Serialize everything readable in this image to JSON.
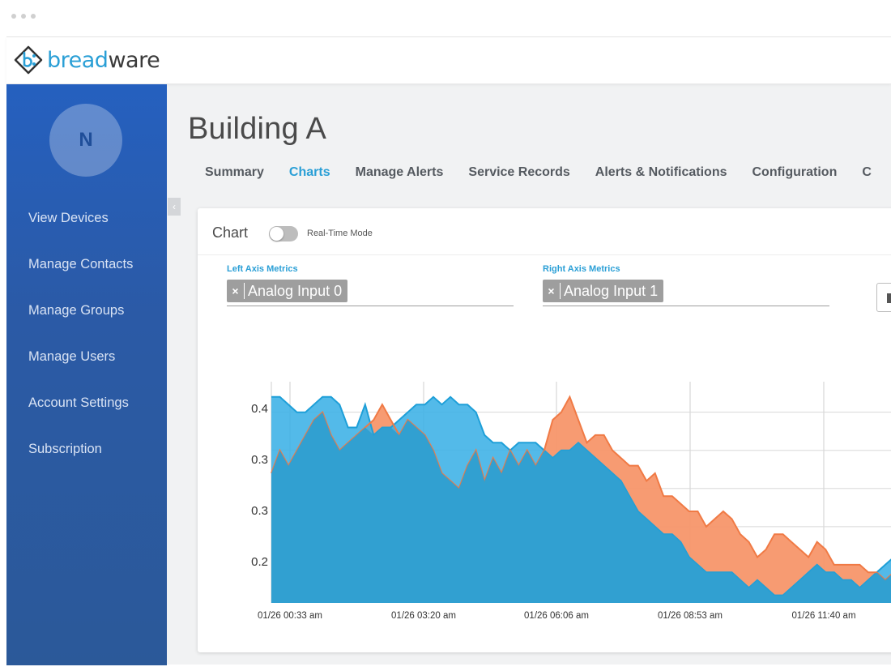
{
  "app": {
    "logo_text_left": "bread",
    "logo_text_right": "ware"
  },
  "sidebar": {
    "avatar_initial": "N",
    "items": [
      {
        "label": "View Devices"
      },
      {
        "label": "Manage Contacts"
      },
      {
        "label": "Manage Groups"
      },
      {
        "label": "Manage Users"
      },
      {
        "label": "Account Settings"
      },
      {
        "label": "Subscription"
      }
    ]
  },
  "page": {
    "title": "Building A",
    "tabs": [
      {
        "label": "Summary"
      },
      {
        "label": "Charts"
      },
      {
        "label": "Manage Alerts"
      },
      {
        "label": "Service Records"
      },
      {
        "label": "Alerts & Notifications"
      },
      {
        "label": "Configuration"
      },
      {
        "label": "C"
      }
    ],
    "active_tab": "Charts"
  },
  "card": {
    "title": "Chart",
    "toggle_label": "Real-Time Mode",
    "left_axis_label": "Left Axis Metrics",
    "left_axis_chip": "Analog Input 0",
    "right_axis_label": "Right Axis Metrics",
    "right_axis_chip": "Analog Input 1",
    "chip_remove": "×"
  },
  "colors": {
    "accent": "#2a9fd6",
    "sidebar": "#2b5aa6",
    "series_blue": "#1aa3dc",
    "series_orange": "#f47c4a"
  },
  "chart_data": {
    "type": "area",
    "title": "",
    "xlabel": "",
    "ylabel": "",
    "y_tick_labels": [
      "0.4",
      "0.3",
      "0.3",
      "0.2"
    ],
    "x_tick_labels": [
      "01/26 00:33 am",
      "01/26 03:20 am",
      "01/26 06:06 am",
      "01/26 08:53 am",
      "01/26 11:40 am"
    ],
    "ylim": [
      0.16,
      0.45
    ],
    "grid": true,
    "series": [
      {
        "values": [
          0.43,
          0.43,
          0.42,
          0.41,
          0.41,
          0.42,
          0.43,
          0.43,
          0.42,
          0.39,
          0.39,
          0.42,
          0.38,
          0.39,
          0.39,
          0.4,
          0.41,
          0.42,
          0.42,
          0.43,
          0.42,
          0.43,
          0.42,
          0.42,
          0.41,
          0.38,
          0.37,
          0.37,
          0.36,
          0.37,
          0.37,
          0.37,
          0.36,
          0.35,
          0.36,
          0.36,
          0.37,
          0.36,
          0.35,
          0.34,
          0.33,
          0.32,
          0.3,
          0.28,
          0.27,
          0.26,
          0.25,
          0.25,
          0.24,
          0.22,
          0.21,
          0.2,
          0.2,
          0.2,
          0.2,
          0.19,
          0.18,
          0.19,
          0.18,
          0.17,
          0.17,
          0.18,
          0.19,
          0.2,
          0.21,
          0.2,
          0.2,
          0.19,
          0.19,
          0.18,
          0.19,
          0.2,
          0.21,
          0.22,
          0.23
        ]
      },
      {
        "values": [
          0.33,
          0.36,
          0.34,
          0.36,
          0.38,
          0.4,
          0.41,
          0.38,
          0.36,
          0.37,
          0.38,
          0.39,
          0.4,
          0.42,
          0.4,
          0.38,
          0.4,
          0.39,
          0.38,
          0.36,
          0.33,
          0.32,
          0.31,
          0.34,
          0.36,
          0.32,
          0.35,
          0.33,
          0.36,
          0.34,
          0.36,
          0.34,
          0.36,
          0.4,
          0.41,
          0.43,
          0.4,
          0.37,
          0.38,
          0.38,
          0.36,
          0.35,
          0.34,
          0.34,
          0.32,
          0.33,
          0.3,
          0.3,
          0.29,
          0.28,
          0.28,
          0.26,
          0.27,
          0.28,
          0.27,
          0.25,
          0.24,
          0.22,
          0.23,
          0.25,
          0.25,
          0.24,
          0.23,
          0.22,
          0.24,
          0.23,
          0.21,
          0.21,
          0.21,
          0.21,
          0.2,
          0.2,
          0.19,
          0.2,
          0.22
        ]
      }
    ]
  }
}
